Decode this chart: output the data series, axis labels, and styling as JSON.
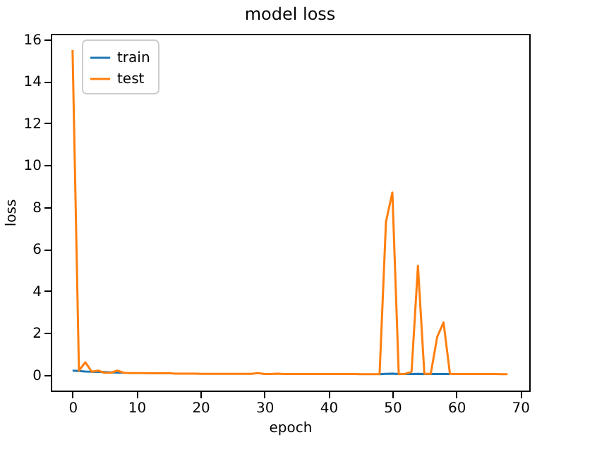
{
  "chart_data": {
    "type": "line",
    "title": "model loss",
    "xlabel": "epoch",
    "ylabel": "loss",
    "x": [
      0,
      1,
      2,
      3,
      4,
      5,
      6,
      7,
      8,
      9,
      10,
      11,
      12,
      13,
      14,
      15,
      16,
      17,
      18,
      19,
      20,
      21,
      22,
      23,
      24,
      25,
      26,
      27,
      28,
      29,
      30,
      31,
      32,
      33,
      34,
      35,
      36,
      37,
      38,
      39,
      40,
      41,
      42,
      43,
      44,
      45,
      46,
      47,
      48,
      49,
      50,
      51,
      52,
      53,
      54,
      55,
      56,
      57,
      58,
      59,
      60,
      61,
      62,
      63,
      64,
      65,
      66,
      67,
      68
    ],
    "series": [
      {
        "name": "train",
        "color": "#1f77b4",
        "values": [
          0.2,
          0.18,
          0.16,
          0.15,
          0.14,
          0.13,
          0.12,
          0.11,
          0.1,
          null,
          null,
          null,
          null,
          null,
          null,
          null,
          null,
          null,
          null,
          null,
          null,
          null,
          null,
          null,
          null,
          null,
          null,
          null,
          null,
          null,
          null,
          null,
          null,
          null,
          null,
          null,
          null,
          null,
          null,
          null,
          null,
          null,
          null,
          null,
          null,
          null,
          null,
          null,
          0.03,
          0.05,
          0.06,
          0.04,
          0.04,
          0.04,
          0.05,
          0.04,
          0.04,
          0.04,
          0.04,
          0.04,
          null,
          null,
          null,
          null,
          null,
          null,
          null,
          null,
          null
        ]
      },
      {
        "name": "test",
        "color": "#ff7f0e",
        "values": [
          15.5,
          0.2,
          0.6,
          0.15,
          0.2,
          0.1,
          0.1,
          0.2,
          0.1,
          0.08,
          0.08,
          0.08,
          0.07,
          0.07,
          0.07,
          0.08,
          0.06,
          0.06,
          0.06,
          0.06,
          0.05,
          0.05,
          0.05,
          0.05,
          0.05,
          0.05,
          0.05,
          0.05,
          0.05,
          0.08,
          0.04,
          0.04,
          0.06,
          0.04,
          0.04,
          0.04,
          0.04,
          0.04,
          0.04,
          0.04,
          0.04,
          0.04,
          0.04,
          0.04,
          0.04,
          0.03,
          0.03,
          0.03,
          0.03,
          7.3,
          8.7,
          0.03,
          0.05,
          0.15,
          5.2,
          0.05,
          0.05,
          1.8,
          2.5,
          0.05,
          0.04,
          0.04,
          0.04,
          0.04,
          0.04,
          0.04,
          0.04,
          0.03,
          0.03
        ]
      }
    ],
    "xlim": [
      -3.4,
      71.4
    ],
    "xticks": [
      0,
      10,
      20,
      30,
      40,
      50,
      60,
      70
    ],
    "ylim": [
      -0.75,
      16.27
    ],
    "yticks": [
      0,
      2,
      4,
      6,
      8,
      10,
      12,
      14,
      16
    ],
    "grid": false,
    "legend": "top left",
    "marker": "none",
    "line_style": "solid"
  }
}
